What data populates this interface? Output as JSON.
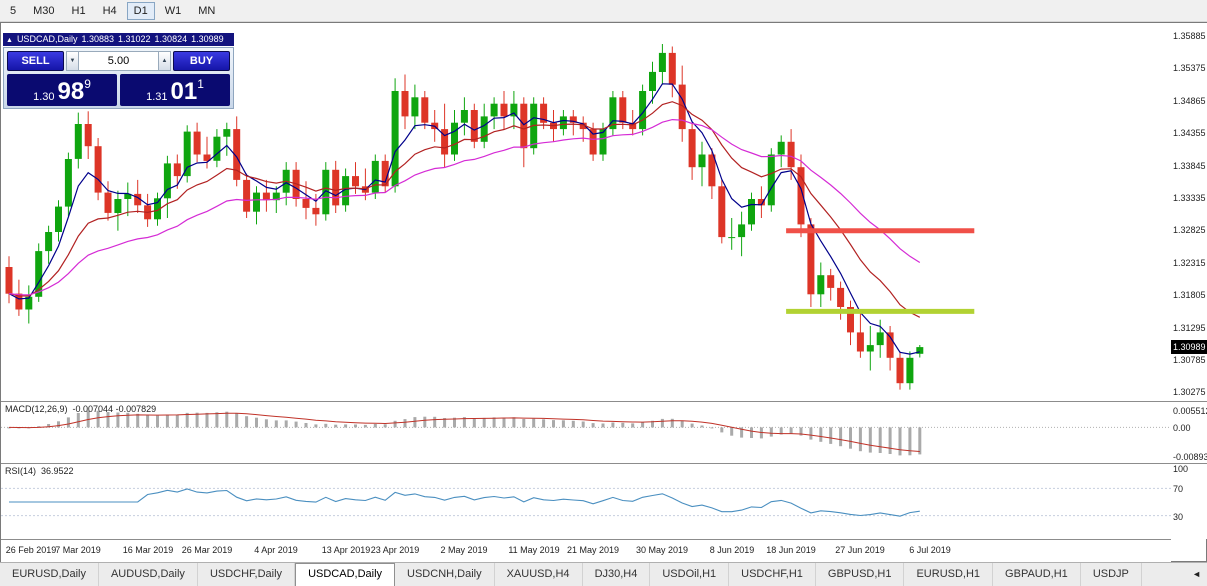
{
  "toolbar": {
    "timeframes": [
      {
        "label": "5",
        "active": false
      },
      {
        "label": "M30",
        "active": false
      },
      {
        "label": "H1",
        "active": false
      },
      {
        "label": "H4",
        "active": false
      },
      {
        "label": "D1",
        "active": true
      },
      {
        "label": "W1",
        "active": false
      },
      {
        "label": "MN",
        "active": false
      }
    ]
  },
  "chart_header": {
    "collapse_icon": "▲",
    "symbol_period": "USDCAD,Daily",
    "open": "1.30883",
    "high": "1.31022",
    "low": "1.30824",
    "close": "1.30989"
  },
  "trade_panel": {
    "sell_label": "SELL",
    "buy_label": "BUY",
    "volume_value": "5.00",
    "volume_down_icon": "▼",
    "volume_up_icon": "▲",
    "sell_price": {
      "small": "1.30",
      "big": "98",
      "sup": "9"
    },
    "buy_price": {
      "small": "1.31",
      "big": "01",
      "sup": "1"
    }
  },
  "chart_data": {
    "type": "candlestick",
    "symbol": "USDCAD",
    "period": "Daily",
    "current_price": 1.30989,
    "current_price_label": "1.30989",
    "colors": {
      "up": "#0fa50f",
      "down": "#dd3527"
    },
    "y_axis": {
      "max": 1.3609,
      "min": 1.3014,
      "labels": [
        "1.35885",
        "1.35375",
        "1.34865",
        "1.34355",
        "1.33845",
        "1.33335",
        "1.32825",
        "1.32315",
        "1.31805",
        "1.31295",
        "1.30785",
        "1.30275"
      ]
    },
    "x_axis": {
      "labels": [
        {
          "label": "26 Feb 2019",
          "index": 0
        },
        {
          "label": "7 Mar 2019",
          "index": 7
        },
        {
          "label": "16 Mar 2019",
          "index": 14
        },
        {
          "label": "26 Mar 2019",
          "index": 20
        },
        {
          "label": "4 Apr 2019",
          "index": 27
        },
        {
          "label": "13 Apr 2019",
          "index": 34
        },
        {
          "label": "23 Apr 2019",
          "index": 39
        },
        {
          "label": "2 May 2019",
          "index": 46
        },
        {
          "label": "11 May 2019",
          "index": 53
        },
        {
          "label": "21 May 2019",
          "index": 59
        },
        {
          "label": "30 May 2019",
          "index": 66
        },
        {
          "label": "8 Jun 2019",
          "index": 73
        },
        {
          "label": "18 Jun 2019",
          "index": 79
        },
        {
          "label": "27 Jun 2019",
          "index": 86
        },
        {
          "label": "6 Jul 2019",
          "index": 93
        }
      ]
    },
    "candles": [
      [
        1.3225,
        1.3242,
        1.3168,
        1.3183
      ],
      [
        1.3183,
        1.3205,
        1.3148,
        1.3158
      ],
      [
        1.3158,
        1.3196,
        1.3136,
        1.3178
      ],
      [
        1.3178,
        1.3262,
        1.317,
        1.325
      ],
      [
        1.325,
        1.329,
        1.323,
        1.328
      ],
      [
        1.328,
        1.333,
        1.3265,
        1.332
      ],
      [
        1.332,
        1.3405,
        1.3305,
        1.3395
      ],
      [
        1.3395,
        1.3468,
        1.338,
        1.345
      ],
      [
        1.345,
        1.347,
        1.3395,
        1.3415
      ],
      [
        1.3415,
        1.3428,
        1.333,
        1.3342
      ],
      [
        1.3342,
        1.336,
        1.3298,
        1.331
      ],
      [
        1.331,
        1.3345,
        1.3282,
        1.3332
      ],
      [
        1.3332,
        1.3358,
        1.3305,
        1.334
      ],
      [
        1.334,
        1.3362,
        1.331,
        1.3322
      ],
      [
        1.3322,
        1.334,
        1.3288,
        1.33
      ],
      [
        1.33,
        1.3342,
        1.329,
        1.3333
      ],
      [
        1.3333,
        1.34,
        1.3302,
        1.3388
      ],
      [
        1.3388,
        1.3402,
        1.3348,
        1.3368
      ],
      [
        1.3368,
        1.3448,
        1.3358,
        1.3438
      ],
      [
        1.3438,
        1.3452,
        1.339,
        1.3402
      ],
      [
        1.3402,
        1.343,
        1.338,
        1.3392
      ],
      [
        1.3392,
        1.3442,
        1.3382,
        1.343
      ],
      [
        1.343,
        1.3452,
        1.34,
        1.3442
      ],
      [
        1.3442,
        1.3462,
        1.3352,
        1.3362
      ],
      [
        1.3362,
        1.3372,
        1.3302,
        1.3312
      ],
      [
        1.3312,
        1.3352,
        1.3292,
        1.3342
      ],
      [
        1.3342,
        1.3362,
        1.3312,
        1.333
      ],
      [
        1.333,
        1.3352,
        1.331,
        1.3342
      ],
      [
        1.3342,
        1.339,
        1.3322,
        1.3378
      ],
      [
        1.3378,
        1.339,
        1.332,
        1.3332
      ],
      [
        1.3332,
        1.336,
        1.33,
        1.3318
      ],
      [
        1.3318,
        1.334,
        1.329,
        1.3308
      ],
      [
        1.3308,
        1.339,
        1.3298,
        1.3378
      ],
      [
        1.3378,
        1.3392,
        1.331,
        1.3322
      ],
      [
        1.3322,
        1.338,
        1.3312,
        1.3368
      ],
      [
        1.3368,
        1.339,
        1.334,
        1.3352
      ],
      [
        1.3352,
        1.338,
        1.333,
        1.3342
      ],
      [
        1.3342,
        1.3402,
        1.3332,
        1.3392
      ],
      [
        1.3392,
        1.3402,
        1.3342,
        1.3352
      ],
      [
        1.3352,
        1.3522,
        1.3342,
        1.3502
      ],
      [
        1.3502,
        1.3528,
        1.3442,
        1.3462
      ],
      [
        1.3462,
        1.3512,
        1.3442,
        1.3492
      ],
      [
        1.3492,
        1.3502,
        1.3442,
        1.3452
      ],
      [
        1.3452,
        1.3472,
        1.3422,
        1.3442
      ],
      [
        1.3442,
        1.3482,
        1.3382,
        1.3402
      ],
      [
        1.3402,
        1.3472,
        1.3392,
        1.3452
      ],
      [
        1.3452,
        1.3492,
        1.3432,
        1.3472
      ],
      [
        1.3472,
        1.3482,
        1.3412,
        1.3422
      ],
      [
        1.3422,
        1.3482,
        1.3412,
        1.3462
      ],
      [
        1.3462,
        1.3492,
        1.3442,
        1.3482
      ],
      [
        1.3482,
        1.3502,
        1.3442,
        1.3462
      ],
      [
        1.3462,
        1.3502,
        1.3442,
        1.3482
      ],
      [
        1.3482,
        1.3492,
        1.3382,
        1.3412
      ],
      [
        1.3412,
        1.3492,
        1.3402,
        1.3482
      ],
      [
        1.3482,
        1.3492,
        1.3442,
        1.3452
      ],
      [
        1.3452,
        1.3472,
        1.3422,
        1.3442
      ],
      [
        1.3442,
        1.3472,
        1.3432,
        1.3462
      ],
      [
        1.3462,
        1.3472,
        1.3432,
        1.3452
      ],
      [
        1.3452,
        1.3462,
        1.3422,
        1.3442
      ],
      [
        1.3442,
        1.3452,
        1.3392,
        1.3402
      ],
      [
        1.3402,
        1.3452,
        1.3392,
        1.3442
      ],
      [
        1.3442,
        1.3502,
        1.3432,
        1.3492
      ],
      [
        1.3492,
        1.3502,
        1.3442,
        1.3452
      ],
      [
        1.3452,
        1.3472,
        1.3432,
        1.3442
      ],
      [
        1.3442,
        1.3512,
        1.3432,
        1.3502
      ],
      [
        1.3502,
        1.3548,
        1.3482,
        1.3532
      ],
      [
        1.3532,
        1.3576,
        1.3512,
        1.3562
      ],
      [
        1.3562,
        1.3572,
        1.3492,
        1.3512
      ],
      [
        1.3512,
        1.3542,
        1.3422,
        1.3442
      ],
      [
        1.3442,
        1.3452,
        1.3362,
        1.3382
      ],
      [
        1.3382,
        1.3422,
        1.3352,
        1.3402
      ],
      [
        1.3402,
        1.3412,
        1.3332,
        1.3352
      ],
      [
        1.3352,
        1.3362,
        1.3262,
        1.3272
      ],
      [
        1.3272,
        1.3302,
        1.3252,
        1.3272
      ],
      [
        1.3272,
        1.3312,
        1.3242,
        1.3292
      ],
      [
        1.3292,
        1.3342,
        1.3282,
        1.3332
      ],
      [
        1.3332,
        1.3352,
        1.3302,
        1.3322
      ],
      [
        1.3322,
        1.3412,
        1.3312,
        1.3402
      ],
      [
        1.3402,
        1.3432,
        1.3382,
        1.3422
      ],
      [
        1.3422,
        1.3442,
        1.3362,
        1.3382
      ],
      [
        1.3382,
        1.3402,
        1.3272,
        1.3292
      ],
      [
        1.3292,
        1.3302,
        1.3162,
        1.3182
      ],
      [
        1.3182,
        1.3232,
        1.3162,
        1.3212
      ],
      [
        1.3212,
        1.3222,
        1.3172,
        1.3192
      ],
      [
        1.3192,
        1.3202,
        1.3142,
        1.3162
      ],
      [
        1.3162,
        1.3172,
        1.3102,
        1.3122
      ],
      [
        1.3122,
        1.3152,
        1.3082,
        1.3092
      ],
      [
        1.3092,
        1.3132,
        1.3062,
        1.3102
      ],
      [
        1.3102,
        1.3142,
        1.3082,
        1.3122
      ],
      [
        1.3122,
        1.3132,
        1.3062,
        1.3082
      ],
      [
        1.3082,
        1.3092,
        1.3032,
        1.3042
      ],
      [
        1.3042,
        1.3092,
        1.3032,
        1.3082
      ],
      [
        1.30883,
        1.31022,
        1.30824,
        1.30989
      ]
    ],
    "moving_averages": [
      {
        "name": "fast-ma",
        "period": 5,
        "color": "#00008b"
      },
      {
        "name": "mid-ma",
        "period": 13,
        "color": "#b22222"
      },
      {
        "name": "slow-ma",
        "period": 28,
        "color": "#d52bd5"
      }
    ],
    "hlines": [
      {
        "name": "resistance-line",
        "price": 1.3282,
        "color": "#f05048",
        "width": 5,
        "from_index": 78.5,
        "to_index": 97.5
      },
      {
        "name": "support-line",
        "price": 1.3155,
        "color": "#b2d233",
        "width": 5,
        "from_index": 78.5,
        "to_index": 97.5
      }
    ]
  },
  "macd_panel": {
    "title": "MACD(12,26,9)",
    "values": "-0.007044 -0.007829",
    "axis_labels": [
      "0.005512",
      "0.00",
      "-0.00893"
    ],
    "scale": {
      "max": 0.008,
      "min": -0.0112
    },
    "params": {
      "fast": 12,
      "slow": 26,
      "signal": 9
    },
    "bar_color": "#aaaaaa",
    "signal_color": "#c03228"
  },
  "rsi_panel": {
    "title": "RSI(14)",
    "value": "36.9522",
    "axis_labels": [
      "100",
      "70",
      "30"
    ],
    "levels": [
      70,
      30
    ],
    "period": 14,
    "line_color": "#4a8fc0"
  },
  "tabs": {
    "scroll_left_icon": "◄",
    "items": [
      {
        "label": "EURUSD,Daily",
        "active": false
      },
      {
        "label": "AUDUSD,Daily",
        "active": false
      },
      {
        "label": "USDCHF,Daily",
        "active": false
      },
      {
        "label": "USDCAD,Daily",
        "active": true
      },
      {
        "label": "USDCNH,Daily",
        "active": false
      },
      {
        "label": "XAUUSD,H4",
        "active": false
      },
      {
        "label": "DJ30,H4",
        "active": false
      },
      {
        "label": "USDOil,H1",
        "active": false
      },
      {
        "label": "USDCHF,H1",
        "active": false
      },
      {
        "label": "GBPUSD,H1",
        "active": false
      },
      {
        "label": "EURUSD,H1",
        "active": false
      },
      {
        "label": "GBPAUD,H1",
        "active": false
      },
      {
        "label": "USDJP",
        "active": false
      }
    ]
  }
}
